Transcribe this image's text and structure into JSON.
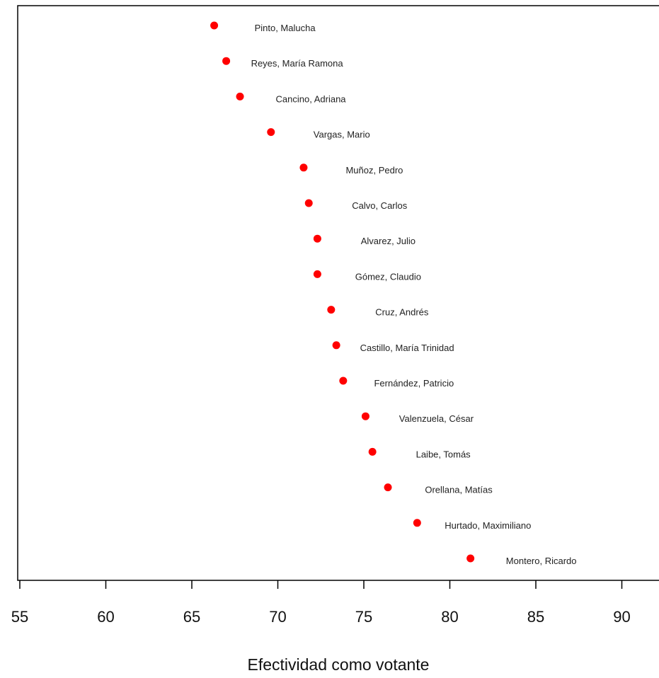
{
  "chart_data": {
    "type": "scatter",
    "title": "",
    "xlabel": "Efectividad como votante",
    "ylabel": "",
    "xlim": [
      54.5,
      92.5
    ],
    "xticks": [
      55,
      60,
      65,
      70,
      75,
      80,
      85,
      90
    ],
    "grid": false,
    "legend": "none",
    "point_color": "#ff0000",
    "points": [
      {
        "label": "Pinto, Malucha",
        "x": 66.3
      },
      {
        "label": "Reyes, María Ramona",
        "x": 67.0
      },
      {
        "label": "Cancino, Adriana",
        "x": 67.8
      },
      {
        "label": "Vargas, Mario",
        "x": 69.6
      },
      {
        "label": "Muñoz, Pedro",
        "x": 71.5
      },
      {
        "label": "Calvo, Carlos",
        "x": 71.8
      },
      {
        "label": "Alvarez, Julio",
        "x": 72.3
      },
      {
        "label": "Gómez, Claudio",
        "x": 72.3
      },
      {
        "label": "Cruz, Andrés",
        "x": 73.1
      },
      {
        "label": "Castillo, María Trinidad",
        "x": 73.4
      },
      {
        "label": "Fernández, Patricio",
        "x": 73.8
      },
      {
        "label": "Valenzuela, César",
        "x": 75.1
      },
      {
        "label": "Laibe, Tomás",
        "x": 75.5
      },
      {
        "label": "Orellana, Matías",
        "x": 76.4
      },
      {
        "label": "Hurtado, Maximiliano",
        "x": 78.1
      },
      {
        "label": "Montero, Ricardo",
        "x": 81.2
      }
    ]
  }
}
